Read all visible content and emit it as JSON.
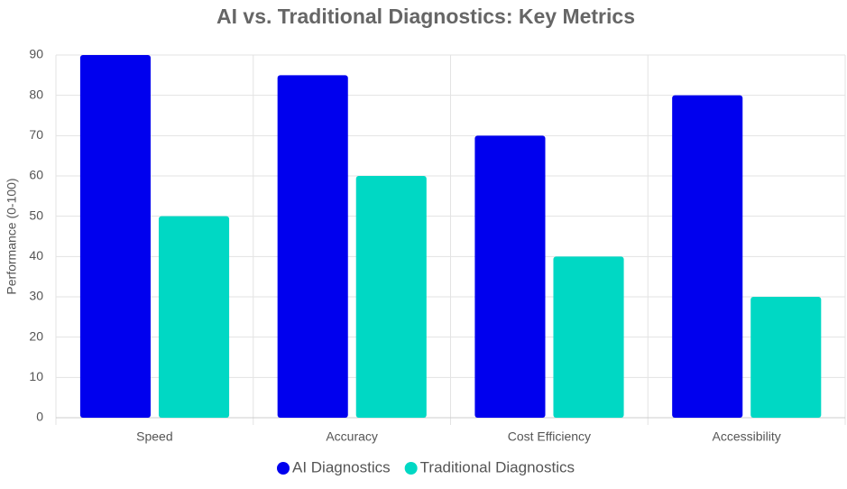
{
  "chart_data": {
    "type": "bar",
    "title": "AI vs. Traditional Diagnostics: Key Metrics",
    "y_label": "Performance (0-100)",
    "categories": [
      "Speed",
      "Accuracy",
      "Cost Efficiency",
      "Accessibility"
    ],
    "series": [
      {
        "name": "AI Diagnostics",
        "color": "#0000ee",
        "values": [
          90,
          85,
          70,
          80
        ]
      },
      {
        "name": "Traditional Diagnostics",
        "color": "#00d8c4",
        "values": [
          50,
          60,
          40,
          30
        ]
      }
    ],
    "ylim": [
      0,
      90
    ],
    "yticks": [
      0,
      10,
      20,
      30,
      40,
      50,
      60,
      70,
      80,
      90
    ],
    "grid": true
  }
}
